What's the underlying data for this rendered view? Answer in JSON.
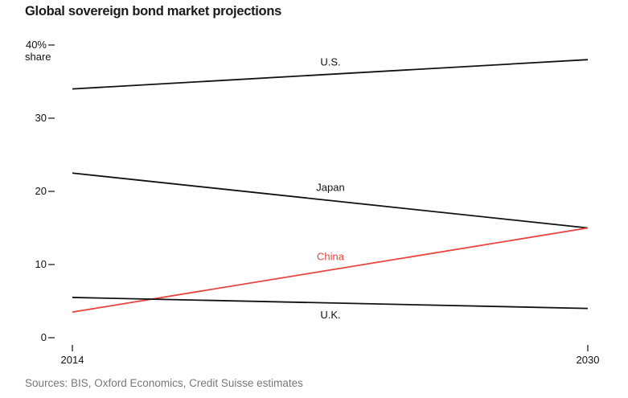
{
  "chart_data": {
    "type": "line",
    "title": "Global sovereign bond market projections",
    "ylabel": "share",
    "x": [
      2014,
      2030
    ],
    "x_ticks": [
      "2014",
      "2030"
    ],
    "y_ticks": [
      "0",
      "10",
      "20",
      "30",
      "40%"
    ],
    "ylim": [
      0,
      40
    ],
    "grid": false,
    "series": [
      {
        "name": "U.S.",
        "values": [
          34,
          38
        ],
        "color": "#111111"
      },
      {
        "name": "Japan",
        "values": [
          22.5,
          15
        ],
        "color": "#111111"
      },
      {
        "name": "China",
        "values": [
          3.5,
          15
        ],
        "color": "#e8433d"
      },
      {
        "name": "U.K.",
        "values": [
          5.5,
          4
        ],
        "color": "#111111"
      }
    ]
  },
  "source": "Sources: BIS, Oxford Economics, Credit Suisse estimates"
}
